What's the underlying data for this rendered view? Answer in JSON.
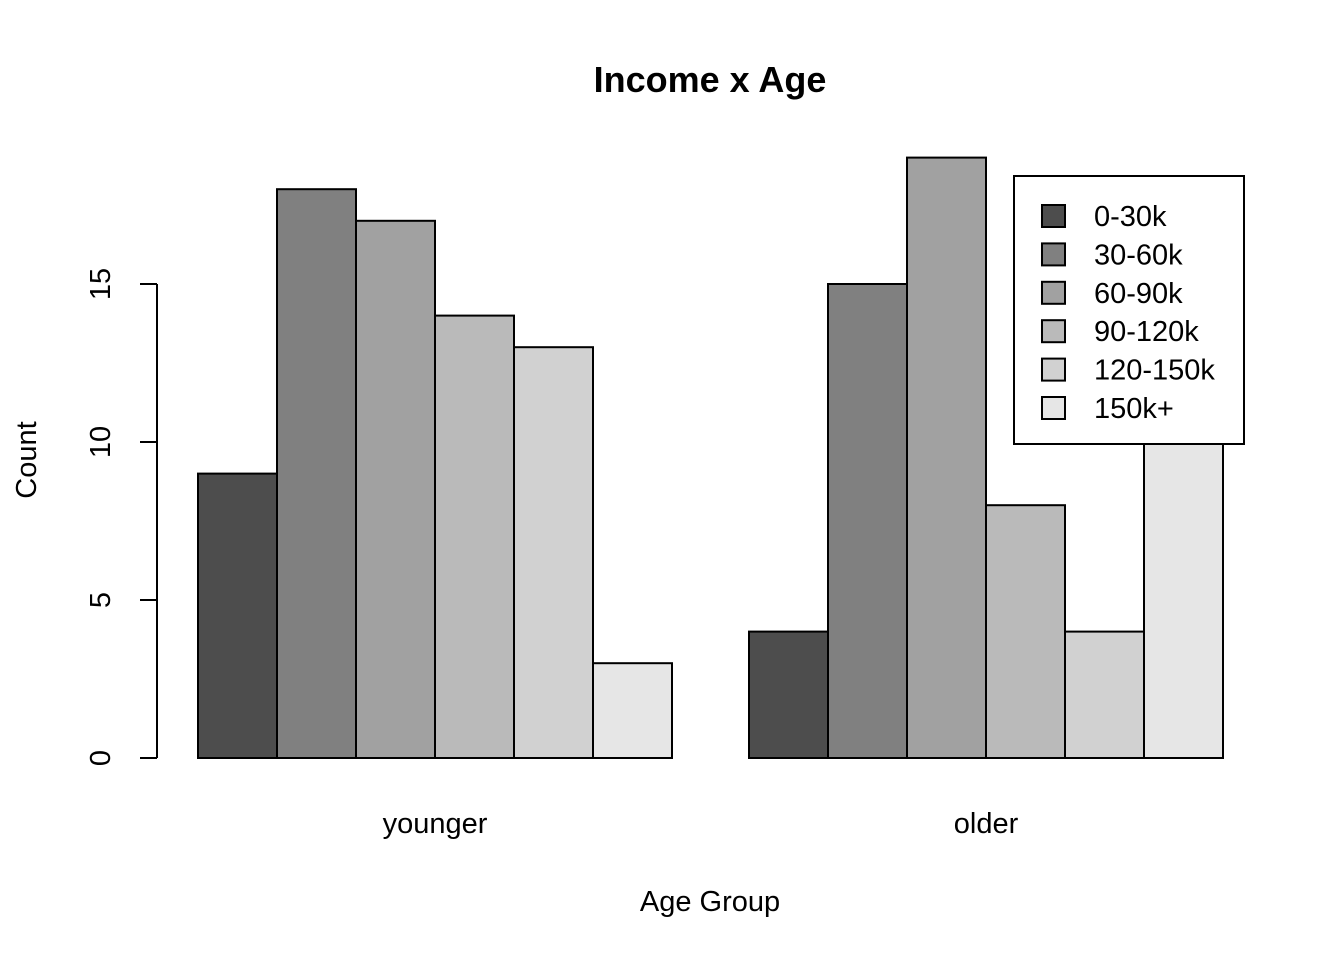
{
  "chart_data": {
    "type": "bar",
    "mode": "grouped",
    "title": "Income x Age",
    "xlabel": "Age Group",
    "ylabel": "Count",
    "categories": [
      "younger",
      "older"
    ],
    "series": [
      {
        "name": "0-30k",
        "color": "#4d4d4d",
        "values": [
          9,
          4
        ]
      },
      {
        "name": "30-60k",
        "color": "#808080",
        "values": [
          18,
          15
        ]
      },
      {
        "name": "60-90k",
        "color": "#a1a1a1",
        "values": [
          17,
          19
        ]
      },
      {
        "name": "90-120k",
        "color": "#bababa",
        "values": [
          14,
          8
        ]
      },
      {
        "name": "120-150k",
        "color": "#d1d1d1",
        "values": [
          13,
          4
        ]
      },
      {
        "name": "150k+",
        "color": "#e6e6e6",
        "values": [
          3,
          14
        ]
      }
    ],
    "yticks": [
      0,
      5,
      10,
      15
    ],
    "ylim": [
      0,
      19
    ],
    "legend": "top-right",
    "grid": false
  }
}
